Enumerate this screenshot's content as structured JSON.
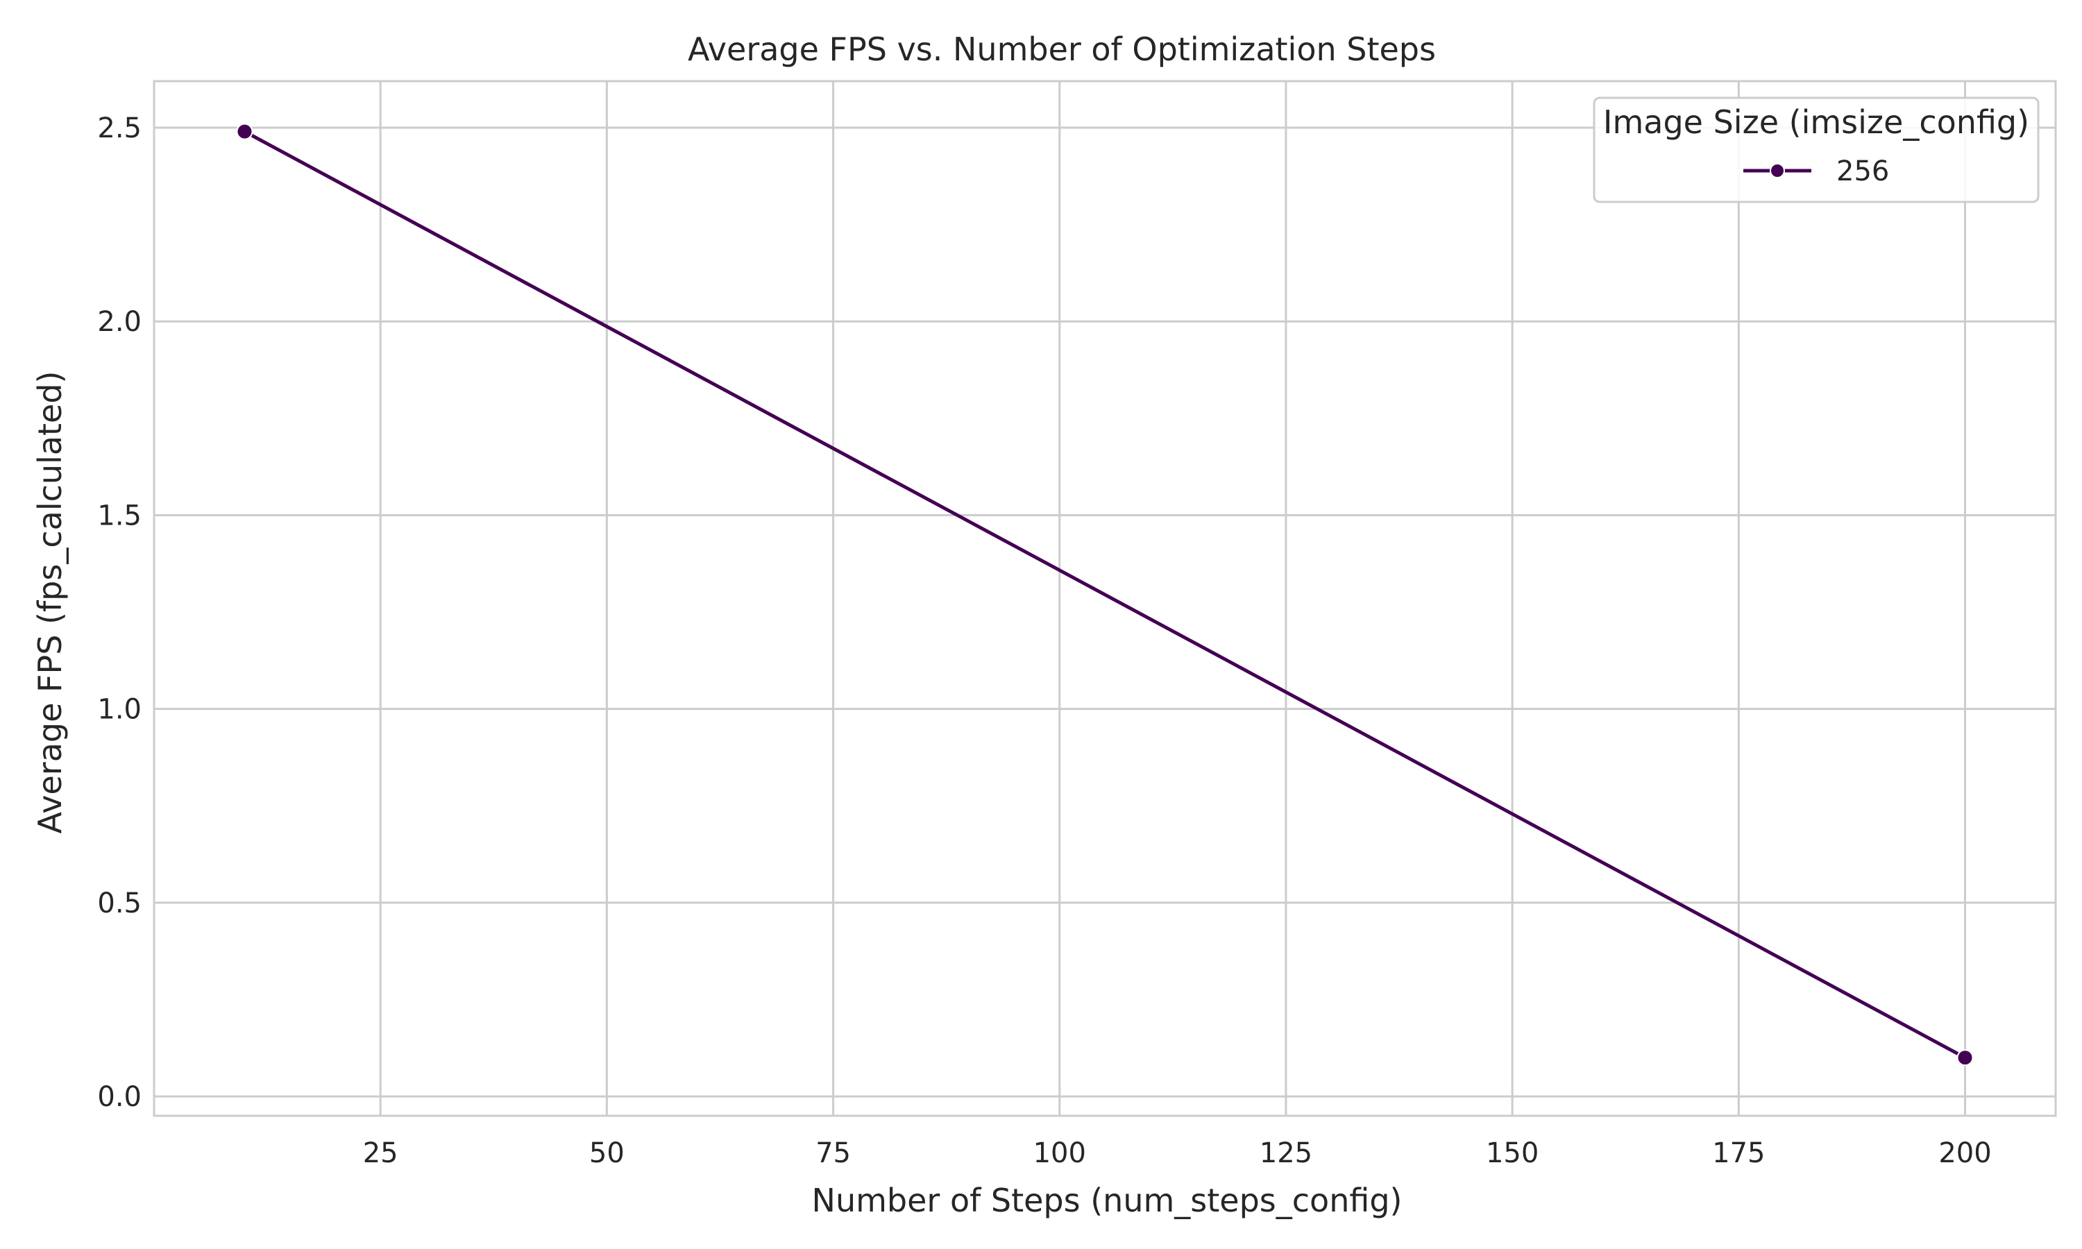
{
  "chart_data": {
    "type": "line",
    "title": "Average FPS vs. Number of Optimization Steps",
    "xlabel": "Number of Steps (num_steps_config)",
    "ylabel": "Average FPS (fps_calculated)",
    "xlim": [
      0,
      210
    ],
    "ylim": [
      -0.05,
      2.62
    ],
    "xticks": [
      25,
      50,
      75,
      100,
      125,
      150,
      175,
      200
    ],
    "yticks": [
      0.0,
      0.5,
      1.0,
      1.5,
      2.0,
      2.5
    ],
    "ytick_labels": [
      "0.0",
      "0.5",
      "1.0",
      "1.5",
      "2.0",
      "2.5"
    ],
    "grid": true,
    "legend": {
      "title": "Image Size (imsize_config)",
      "placement": "top-right"
    },
    "series": [
      {
        "name": "256",
        "color": "#440154",
        "marker": "circle",
        "points": [
          {
            "x": 10,
            "y": 2.49
          },
          {
            "x": 200,
            "y": 0.1
          }
        ]
      }
    ]
  }
}
